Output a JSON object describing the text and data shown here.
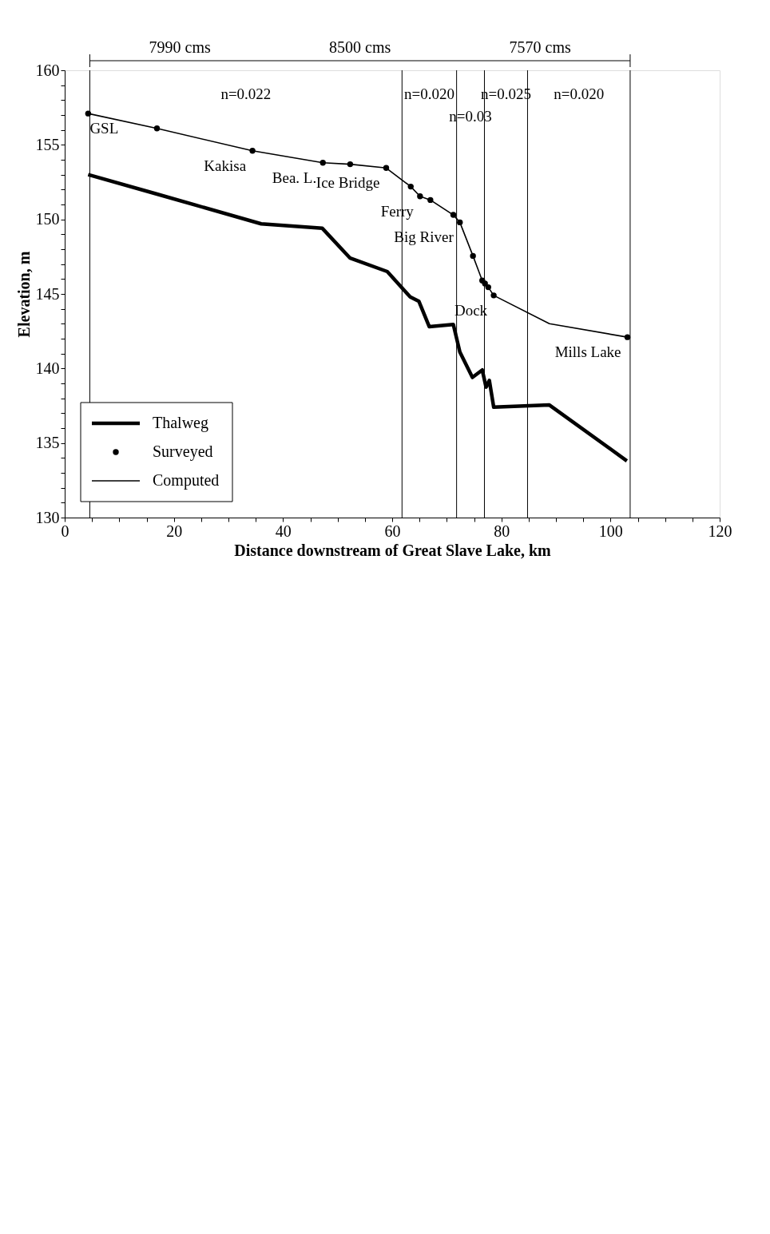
{
  "chart_data": {
    "type": "line",
    "xlabel": "Distance downstream of Great Slave Lake, km",
    "ylabel": "Elevation, m",
    "xlim": [
      0,
      120
    ],
    "ylim": [
      130,
      160
    ],
    "xticks": [
      0,
      {
        "value": 5,
        "label": null
      },
      {
        "value": 10,
        "label": null
      },
      {
        "value": 15,
        "label": null
      },
      20,
      {
        "value": 25,
        "label": null
      },
      {
        "value": 30,
        "label": null
      },
      {
        "value": 35,
        "label": null
      },
      40,
      {
        "value": 45,
        "label": null
      },
      {
        "value": 50,
        "label": null
      },
      {
        "value": 55,
        "label": null
      },
      60,
      {
        "value": 65,
        "label": null
      },
      {
        "value": 70,
        "label": null
      },
      {
        "value": 75,
        "label": null
      },
      80,
      {
        "value": 85,
        "label": null
      },
      {
        "value": 90,
        "label": null
      },
      {
        "value": 95,
        "label": null
      },
      100,
      {
        "value": 105,
        "label": null
      },
      {
        "value": 110,
        "label": null
      },
      {
        "value": 115,
        "label": null
      },
      120
    ],
    "yticks": [
      130,
      {
        "value": 131,
        "label": null
      },
      {
        "value": 132,
        "label": null
      },
      {
        "value": 133,
        "label": null
      },
      {
        "value": 134,
        "label": null
      },
      135,
      {
        "value": 136,
        "label": null
      },
      {
        "value": 137,
        "label": null
      },
      {
        "value": 138,
        "label": null
      },
      {
        "value": 139,
        "label": null
      },
      140,
      {
        "value": 141,
        "label": null
      },
      {
        "value": 142,
        "label": null
      },
      {
        "value": 143,
        "label": null
      },
      {
        "value": 144,
        "label": null
      },
      145,
      {
        "value": 146,
        "label": null
      },
      {
        "value": 147,
        "label": null
      },
      {
        "value": 148,
        "label": null
      },
      {
        "value": 149,
        "label": null
      },
      150,
      {
        "value": 151,
        "label": null
      },
      {
        "value": 152,
        "label": null
      },
      {
        "value": 153,
        "label": null
      },
      {
        "value": 154,
        "label": null
      },
      155,
      {
        "value": 156,
        "label": null
      },
      {
        "value": 157,
        "label": null
      },
      {
        "value": 158,
        "label": null
      },
      {
        "value": 159,
        "label": null
      },
      160
    ],
    "grid": false,
    "legend": "bottom left",
    "series": [
      {
        "name": "Thalweg",
        "type": "line",
        "color": "#000000",
        "x": [
          4.3,
          16.4,
          36.0,
          47.2,
          52.3,
          59.1,
          63.3,
          64.9,
          66.8,
          71.2,
          72.4,
          74.7,
          76.5,
          77.2,
          77.8,
          78.6,
          88.8,
          103.0
        ],
        "values": [
          153.0,
          151.75,
          149.7,
          149.4,
          147.4,
          146.5,
          144.8,
          144.5,
          142.8,
          142.95,
          141.1,
          139.4,
          139.9,
          138.75,
          139.2,
          137.4,
          137.55,
          133.8
        ]
      },
      {
        "name": "Surveyed",
        "type": "scatter",
        "marker": "circle",
        "color": "#000000",
        "x": [
          4.3,
          16.9,
          34.4,
          47.3,
          52.3,
          58.9,
          63.4,
          65.1,
          67.0,
          71.2,
          72.4,
          74.8,
          76.5,
          77.0,
          77.6,
          78.6,
          103.1
        ],
        "values": [
          157.1,
          156.1,
          154.6,
          153.8,
          153.7,
          153.45,
          152.2,
          151.55,
          151.3,
          150.3,
          149.8,
          147.55,
          145.9,
          145.7,
          145.45,
          144.9,
          142.1
        ]
      },
      {
        "name": "Computed",
        "type": "line",
        "color": "#000000",
        "x": [
          4.3,
          16.9,
          34.4,
          47.3,
          52.3,
          58.9,
          63.4,
          65.1,
          67.0,
          71.2,
          72.4,
          74.8,
          76.5,
          77.0,
          77.6,
          78.6,
          88.8,
          103.1
        ],
        "values": [
          157.1,
          156.1,
          154.6,
          153.8,
          153.7,
          153.45,
          152.2,
          151.55,
          151.3,
          150.3,
          149.8,
          147.55,
          145.9,
          145.7,
          145.45,
          144.9,
          143.0,
          142.1
        ]
      }
    ],
    "ref_lines": [
      {
        "axis": "x",
        "value": 4.6
      },
      {
        "axis": "x",
        "value": 61.8
      },
      {
        "axis": "x",
        "value": 71.8
      },
      {
        "axis": "x",
        "value": 76.9
      },
      {
        "axis": "x",
        "value": 84.8
      },
      {
        "axis": "x",
        "value": 103.6
      }
    ],
    "annotations": [
      "n=0.022",
      "n=0.020",
      "n=0.03",
      "n=0.025",
      "n=0.020",
      "7990 cms",
      "8500 cms",
      "7570 cms",
      {
        "text": "GSL",
        "x": 4.3,
        "y": 157.1
      },
      {
        "text": "Kakisa",
        "x": 34.4,
        "y": 154.6
      },
      {
        "text": "Bea. L.",
        "x": 47.3,
        "y": 153.8
      },
      {
        "text": "Ice Bridge",
        "x": 58.9,
        "y": 153.45
      },
      {
        "text": "Ferry",
        "x": 65.1,
        "y": 151.55
      },
      {
        "text": "Big River",
        "x": 72.4,
        "y": 149.8
      },
      {
        "text": "Dock",
        "x": 78.6,
        "y": 144.9
      },
      {
        "text": "Mills Lake",
        "x": 103.1,
        "y": 142.1
      }
    ]
  }
}
